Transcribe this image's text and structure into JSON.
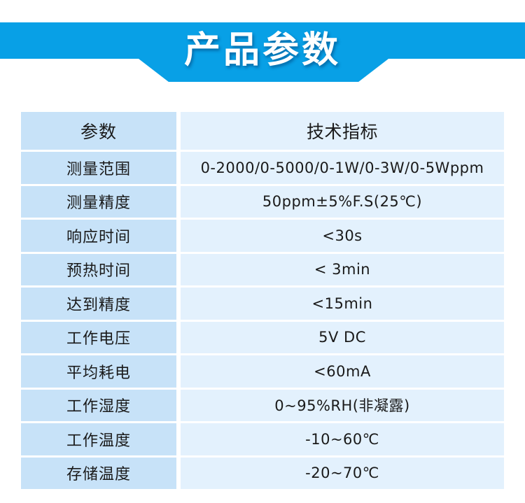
{
  "banner": {
    "title": "产品参数",
    "color": "#08a0e6"
  },
  "table": {
    "headers": [
      "参数",
      "技术指标"
    ],
    "rows": [
      [
        "测量范围",
        "0-2000/0-5000/0-1W/0-3W/0-5Wppm"
      ],
      [
        "测量精度",
        "50ppm±5%F.S(25℃)"
      ],
      [
        "响应时间",
        "<30s"
      ],
      [
        "预热时间",
        "< 3min"
      ],
      [
        "达到精度",
        "<15min"
      ],
      [
        "工作电压",
        "5V DC"
      ],
      [
        "平均耗电",
        "<60mA"
      ],
      [
        "工作湿度",
        "0~95%RH(非凝露)"
      ],
      [
        "工作温度",
        "-10~60℃"
      ],
      [
        "存储温度",
        "-20~70℃"
      ]
    ]
  }
}
